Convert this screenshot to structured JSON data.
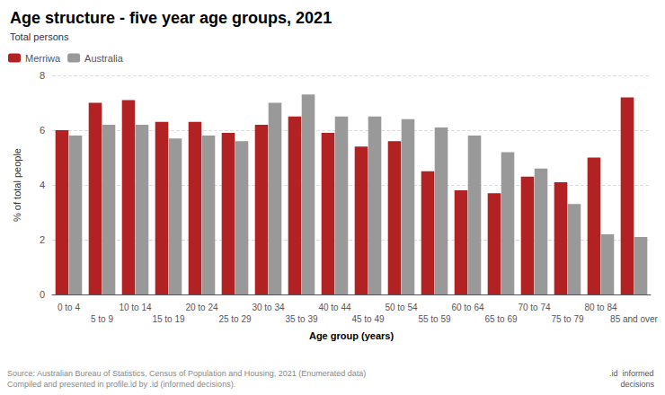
{
  "chart_data": {
    "type": "bar",
    "title": "Age structure - five year age groups, 2021",
    "subtitle": "Total persons",
    "x_label": "Age group (years)",
    "y_label": "% of total people",
    "annotations": [
      "Source: Australian Bureau of Statistics, Census of Population and Housing, 2021 (Enumerated data)\nCompiled and presented in profile.id by .id (informed decisions).",
      ".id  informed\n     decisions"
    ],
    "categories": [
      "0 to 4",
      "5 to 9",
      "10 to 14",
      "15 to 19",
      "20 to 24",
      "25 to 29",
      "30 to 34",
      "35 to 39",
      "40 to 44",
      "45 to 49",
      "50 to 54",
      "55 to 59",
      "60 to 64",
      "65 to 69",
      "70 to 74",
      "75 to 79",
      "80 to 84",
      "85 and over"
    ],
    "series": [
      {
        "name": "Merriwa",
        "color": "#b22222",
        "values": [
          6.0,
          7.0,
          7.1,
          6.3,
          6.3,
          5.9,
          6.2,
          6.5,
          5.9,
          5.4,
          5.6,
          4.5,
          3.8,
          3.7,
          4.3,
          4.1,
          5.0,
          7.2
        ]
      },
      {
        "name": "Australia",
        "color": "#999999",
        "values": [
          5.8,
          6.2,
          6.2,
          5.7,
          5.8,
          5.6,
          7.0,
          7.3,
          6.5,
          6.5,
          6.4,
          6.1,
          5.8,
          5.2,
          4.6,
          3.3,
          2.2,
          2.1
        ]
      }
    ],
    "ylim": [
      0,
      8
    ],
    "yticks": [
      0,
      2,
      4,
      6,
      8
    ],
    "grid": true,
    "legend": "upper left"
  }
}
